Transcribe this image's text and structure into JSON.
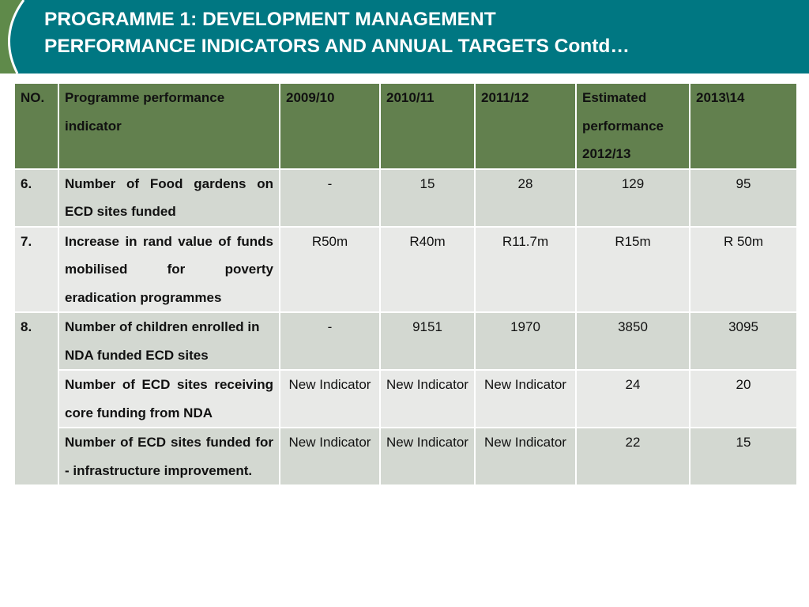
{
  "header": {
    "title_line1": "PROGRAMME 1: DEVELOPMENT MANAGEMENT",
    "title_line2": "PERFORMANCE INDICATORS AND ANNUAL TARGETS Contd…"
  },
  "colors": {
    "header_bg": "#007782",
    "table_header_bg": "#62804e",
    "row_dark": "#d3d8d1",
    "row_light": "#e8e9e7"
  },
  "table": {
    "columns": [
      "NO.",
      "Programme performance indicator",
      "2009/10",
      "2010/11",
      "2011/12",
      "Estimated performance 2012/13",
      "2013\\14"
    ],
    "rows": [
      {
        "no": "6.",
        "indicator": "Number of Food gardens on ECD sites funded",
        "v2009": "-",
        "v2010": "15",
        "v2011": "28",
        "v2012": "129",
        "v2013": "95"
      },
      {
        "no": "7.",
        "indicator": "Increase in rand value of funds mobilised for poverty eradication programmes",
        "v2009": "R50m",
        "v2010": "R40m",
        "v2011": "R11.7m",
        "v2012": "R15m",
        "v2013": "R 50m"
      },
      {
        "no": "8.",
        "indicator": "Number of children enrolled in NDA funded ECD sites",
        "v2009": "-",
        "v2010": "9151",
        "v2011": "1970",
        "v2012": "3850",
        "v2013": "3095"
      },
      {
        "no": "",
        "indicator": "Number of ECD sites receiving core funding from NDA",
        "v2009": "New Indicator",
        "v2010": "New Indicator",
        "v2011": "New Indicator",
        "v2012": "24",
        "v2013": "20"
      },
      {
        "no": "",
        "indicator": "Number of ECD sites funded for - infrastructure improvement.",
        "v2009": "New Indicator",
        "v2010": "New Indicator",
        "v2011": "New Indicator",
        "v2012": "22",
        "v2013": "15"
      }
    ]
  }
}
